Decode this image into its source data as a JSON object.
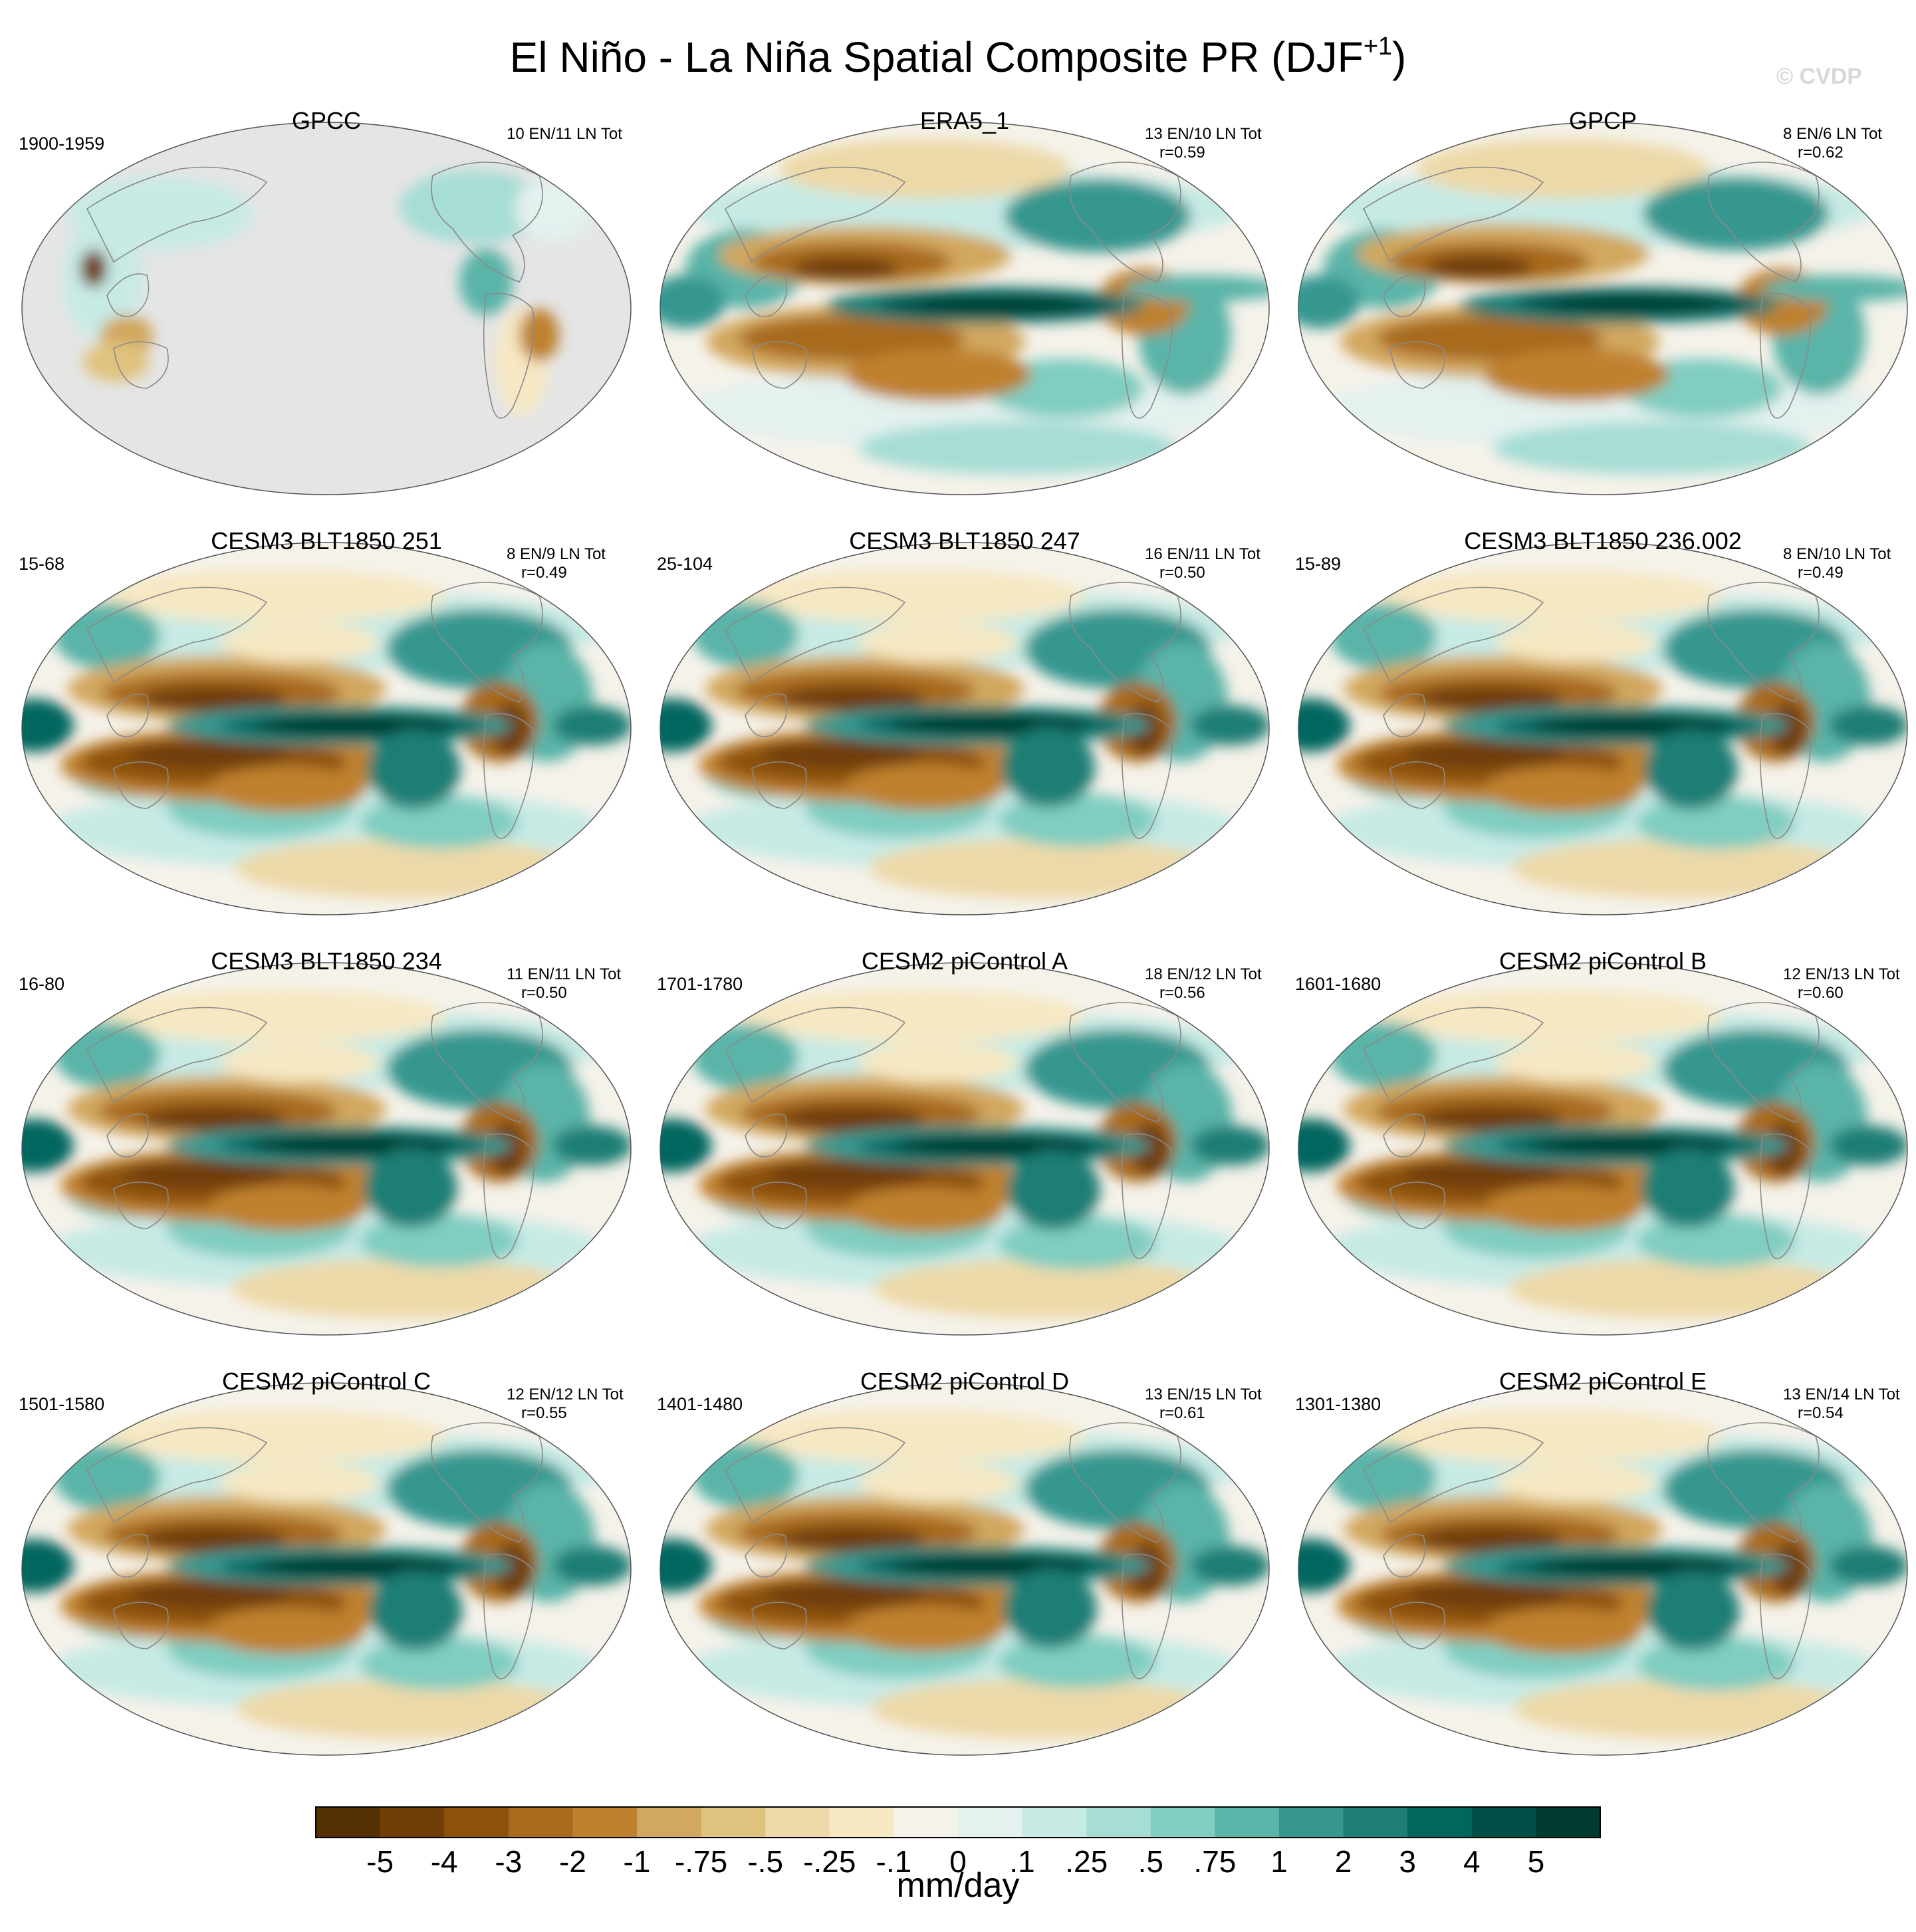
{
  "figure": {
    "title_main": "El Niño - La Niña Spatial Composite PR (DJF",
    "title_sup": "+1",
    "title_end": ")",
    "watermark": "© CVDP"
  },
  "panels": [
    {
      "title": "GPCC",
      "period": "1900-1959",
      "counts": "10 EN/11 LN Tot",
      "r": "",
      "kind": "obs-land"
    },
    {
      "title": "ERA5_1",
      "period": "",
      "counts": "13 EN/10 LN Tot",
      "r": "r=0.59",
      "kind": "obs"
    },
    {
      "title": "GPCP",
      "period": "",
      "counts": "8 EN/6 LN Tot",
      "r": "r=0.62",
      "kind": "obs"
    },
    {
      "title": "CESM3 BLT1850 251",
      "period": "15-68",
      "counts": "8 EN/9 LN Tot",
      "r": "r=0.49",
      "kind": "model"
    },
    {
      "title": "CESM3 BLT1850 247",
      "period": "25-104",
      "counts": "16 EN/11 LN Tot",
      "r": "r=0.50",
      "kind": "model"
    },
    {
      "title": "CESM3 BLT1850 236.002",
      "period": "15-89",
      "counts": "8 EN/10 LN Tot",
      "r": "r=0.49",
      "kind": "model"
    },
    {
      "title": "CESM3 BLT1850 234",
      "period": "16-80",
      "counts": "11 EN/11 LN Tot",
      "r": "r=0.50",
      "kind": "model"
    },
    {
      "title": "CESM2 piControl A",
      "period": "1701-1780",
      "counts": "18 EN/12 LN Tot",
      "r": "r=0.56",
      "kind": "model"
    },
    {
      "title": "CESM2 piControl B",
      "period": "1601-1680",
      "counts": "12 EN/13 LN Tot",
      "r": "r=0.60",
      "kind": "model"
    },
    {
      "title": "CESM2 piControl C",
      "period": "1501-1580",
      "counts": "12 EN/12 LN Tot",
      "r": "r=0.55",
      "kind": "model"
    },
    {
      "title": "CESM2 piControl D",
      "period": "1401-1480",
      "counts": "13 EN/15 LN Tot",
      "r": "r=0.61",
      "kind": "model"
    },
    {
      "title": "CESM2 piControl E",
      "period": "1301-1380",
      "counts": "13 EN/14 LN Tot",
      "r": "r=0.54",
      "kind": "model"
    }
  ],
  "colorbar": {
    "units": "mm/day",
    "labels": [
      "-5",
      "-4",
      "-3",
      "-2",
      "-1",
      "-.75",
      "-.5",
      "-.25",
      "-.1",
      "0",
      ".1",
      ".25",
      ".5",
      ".75",
      "1",
      "2",
      "3",
      "4",
      "5"
    ],
    "colors": [
      "#543005",
      "#6f3e07",
      "#8c510a",
      "#a86a1d",
      "#bf812d",
      "#d2a75f",
      "#dfc27d",
      "#edd9a8",
      "#f6e8c3",
      "#f5f2ea",
      "#e3f1ef",
      "#c7eae5",
      "#a6ddd5",
      "#80cdc1",
      "#5ab4a8",
      "#35978f",
      "#1c7e75",
      "#01665e",
      "#024f48",
      "#003c30"
    ]
  },
  "map_colors": {
    "ocean_land_missing": "#e5e5e5",
    "neutral": "#f5f2ea",
    "coast": "#8a8a8a"
  }
}
